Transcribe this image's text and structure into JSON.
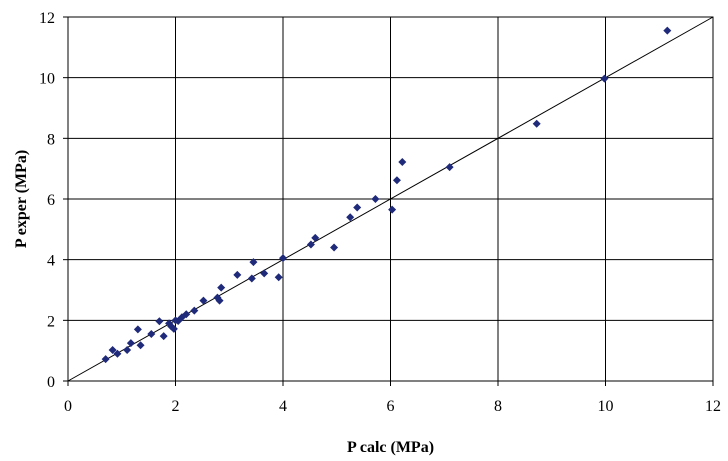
{
  "chart_data": {
    "type": "scatter",
    "title": "",
    "xlabel": "P calc (MPa)",
    "ylabel": "P exper (MPa)",
    "xlim": [
      0,
      12
    ],
    "ylim": [
      0,
      12
    ],
    "xticks": [
      "0",
      "2",
      "4",
      "6",
      "8",
      "10",
      "12"
    ],
    "yticks": [
      "0",
      "2",
      "4",
      "6",
      "8",
      "10",
      "12"
    ],
    "grid": true,
    "legend": "none",
    "reference_line": {
      "from": [
        0,
        0
      ],
      "to": [
        12,
        12
      ]
    },
    "marker": "diamond",
    "marker_color": "#1f2a7a",
    "series": [
      {
        "points": [
          [
            0.7,
            0.72
          ],
          [
            0.83,
            1.02
          ],
          [
            0.92,
            0.9
          ],
          [
            1.1,
            1.02
          ],
          [
            1.17,
            1.25
          ],
          [
            1.3,
            1.7
          ],
          [
            1.35,
            1.18
          ],
          [
            1.55,
            1.55
          ],
          [
            1.7,
            1.97
          ],
          [
            1.78,
            1.48
          ],
          [
            1.88,
            1.9
          ],
          [
            1.92,
            1.8
          ],
          [
            1.97,
            1.72
          ],
          [
            2.0,
            2.0
          ],
          [
            2.05,
            1.98
          ],
          [
            2.12,
            2.1
          ],
          [
            2.2,
            2.2
          ],
          [
            2.35,
            2.32
          ],
          [
            2.52,
            2.65
          ],
          [
            2.78,
            2.75
          ],
          [
            2.82,
            2.65
          ],
          [
            2.85,
            3.08
          ],
          [
            3.15,
            3.5
          ],
          [
            3.42,
            3.38
          ],
          [
            3.45,
            3.92
          ],
          [
            3.65,
            3.55
          ],
          [
            3.92,
            3.42
          ],
          [
            4.0,
            4.05
          ],
          [
            4.52,
            4.5
          ],
          [
            4.6,
            4.72
          ],
          [
            4.95,
            4.4
          ],
          [
            5.25,
            5.4
          ],
          [
            5.38,
            5.72
          ],
          [
            5.72,
            6.0
          ],
          [
            6.03,
            5.65
          ],
          [
            6.12,
            6.62
          ],
          [
            6.22,
            7.22
          ],
          [
            7.1,
            7.05
          ],
          [
            8.72,
            8.48
          ],
          [
            9.98,
            9.97
          ],
          [
            11.15,
            11.55
          ]
        ]
      }
    ]
  }
}
